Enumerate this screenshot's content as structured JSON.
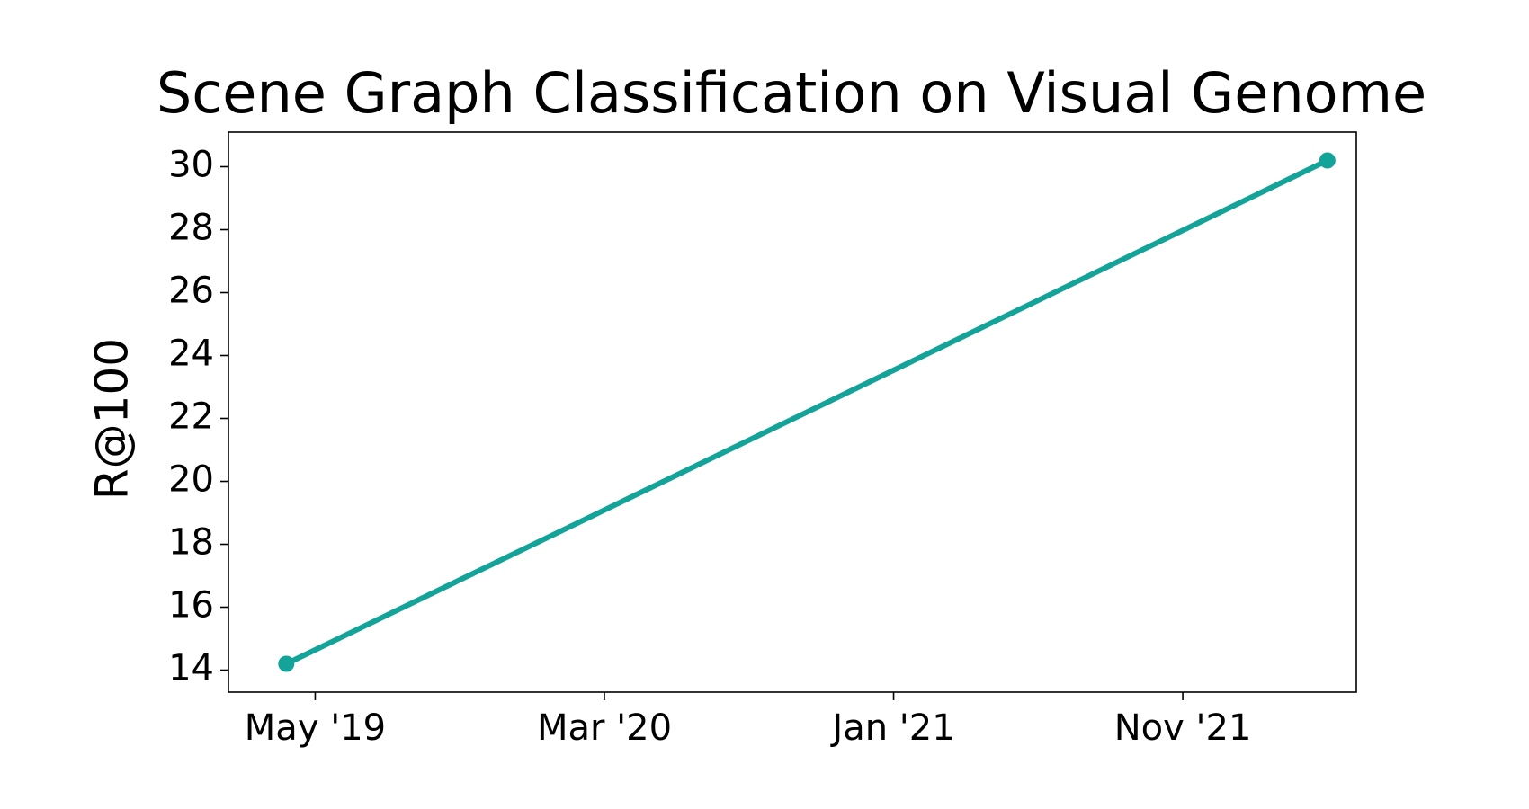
{
  "chart_data": {
    "type": "line",
    "title": "Scene Graph Classification on Visual Genome",
    "y_label": "R@100",
    "x": [
      "2019-04",
      "2022-04"
    ],
    "series": [
      {
        "name": "R@100",
        "color": "#13a398",
        "values": [
          14.2,
          30.2
        ]
      }
    ],
    "xlim": [
      "2019-02",
      "2022-05"
    ],
    "xticks": [
      {
        "value": "2019-05",
        "label": "May '19"
      },
      {
        "value": "2020-03",
        "label": "Mar '20"
      },
      {
        "value": "2021-01",
        "label": "Jan '21"
      },
      {
        "value": "2021-11",
        "label": "Nov '21"
      }
    ],
    "ylim": [
      13.3,
      31.1
    ],
    "yticks": [
      14,
      16,
      18,
      20,
      22,
      24,
      26,
      28,
      30
    ],
    "grid": false
  }
}
